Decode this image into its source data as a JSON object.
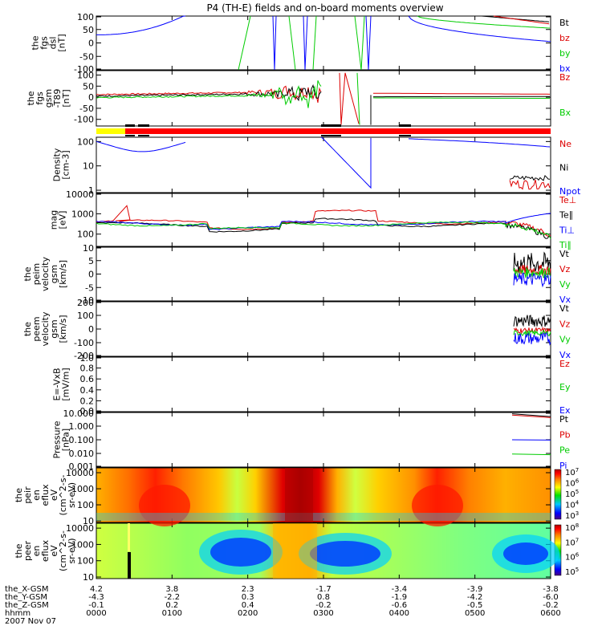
{
  "title": "P4 (TH-E) fields and on-board moments overview",
  "date_label": "2007 Nov 07",
  "orbit_rows": [
    {
      "label": "the_X-GSM",
      "values": [
        "4.2",
        "3.8",
        "2.3",
        "-1.7",
        "-3.4",
        "-3.9",
        "-3.8"
      ]
    },
    {
      "label": "the_Y-GSM",
      "values": [
        "-4.3",
        "-2.2",
        "0.3",
        "0.8",
        "-1.9",
        "-4.2",
        "-6.0"
      ]
    },
    {
      "label": "the_Z-GSM",
      "values": [
        "-0.1",
        "0.2",
        "0.4",
        "-0.2",
        "-0.6",
        "-0.5",
        "-0.2"
      ]
    },
    {
      "label": "hhmm",
      "values": [
        "0000",
        "0100",
        "0200",
        "0300",
        "0400",
        "0500",
        "0600"
      ]
    }
  ],
  "colors": {
    "black": "#000000",
    "red": "#dd0000",
    "green": "#00cc00",
    "blue": "#0000ff",
    "yellow": "#ffff00",
    "brightred": "#ff0000"
  },
  "chart_data": [
    {
      "type": "line",
      "panel": "fgs_dsl",
      "ylabel": [
        "the",
        "fgs",
        "dsl",
        "[nT]"
      ],
      "ylim": [
        -100,
        100
      ],
      "yticks": [
        "100",
        "50",
        "0",
        "-50",
        "-100"
      ],
      "series": [
        {
          "name": "Bt",
          "color": "#000000"
        },
        {
          "name": "bz",
          "color": "#dd0000"
        },
        {
          "name": "by",
          "color": "#00cc00"
        },
        {
          "name": "bx",
          "color": "#0000ff"
        }
      ]
    },
    {
      "type": "line",
      "panel": "fgs_gsm",
      "ylabel": [
        "the",
        "fgs",
        "gsm",
        "-T89",
        "[nT]"
      ],
      "ylim": [
        -130,
        120
      ],
      "yticks": [
        "100",
        "50",
        "0",
        "-50",
        "-100"
      ],
      "series": [
        {
          "name": "Bz",
          "color": "#dd0000"
        },
        {
          "name": "Bx",
          "color": "#00cc00"
        }
      ]
    },
    {
      "type": "line",
      "panel": "density",
      "ylabel": [
        "Density",
        "[cm-3]"
      ],
      "scale": "log",
      "ylim": [
        0.8,
        150
      ],
      "yticks": [
        "100",
        "10",
        "1"
      ],
      "series": [
        {
          "name": "Ne",
          "color": "#dd0000"
        },
        {
          "name": "Ni",
          "color": "#000000"
        },
        {
          "name": "Npot",
          "color": "#0000ff"
        }
      ]
    },
    {
      "type": "line",
      "panel": "temperature",
      "ylabel": [
        "mag",
        "[eV]"
      ],
      "scale": "log",
      "ylim": [
        25,
        10000
      ],
      "yticks": [
        "10000",
        "1000",
        "100"
      ],
      "series": [
        {
          "name": "Te⊥",
          "color": "#dd0000"
        },
        {
          "name": "Te∥",
          "color": "#000000"
        },
        {
          "name": "Ti⊥",
          "color": "#0000ff"
        },
        {
          "name": "Ti∥",
          "color": "#00cc00"
        }
      ]
    },
    {
      "type": "line",
      "panel": "peim_velocity",
      "ylabel": [
        "the",
        "peim",
        "velocity",
        "gsm",
        "[km/s]"
      ],
      "ylim": [
        -10,
        10
      ],
      "yticks": [
        "10",
        "5",
        "0",
        "-5",
        "-10"
      ],
      "series": [
        {
          "name": "Vt",
          "color": "#000000"
        },
        {
          "name": "Vz",
          "color": "#dd0000"
        },
        {
          "name": "Vy",
          "color": "#00cc00"
        },
        {
          "name": "Vx",
          "color": "#0000ff"
        }
      ]
    },
    {
      "type": "line",
      "panel": "peem_velocity",
      "ylabel": [
        "the",
        "peem",
        "velocity",
        "gsm",
        "[km/s]"
      ],
      "ylim": [
        -200,
        200
      ],
      "yticks": [
        "200",
        "100",
        "0",
        "-100",
        "-200"
      ],
      "series": [
        {
          "name": "Vt",
          "color": "#000000"
        },
        {
          "name": "Vz",
          "color": "#dd0000"
        },
        {
          "name": "Vy",
          "color": "#00cc00"
        },
        {
          "name": "Vx",
          "color": "#0000ff"
        }
      ]
    },
    {
      "type": "line",
      "panel": "efield",
      "ylabel": [
        "E=-VxB",
        "[mV/m]"
      ],
      "ylim": [
        0,
        1
      ],
      "yticks": [
        "1.0",
        "0.8",
        "0.6",
        "0.4",
        "0.2",
        "0.0"
      ],
      "series": [
        {
          "name": "Ez",
          "color": "#dd0000"
        },
        {
          "name": "Ey",
          "color": "#00cc00"
        },
        {
          "name": "Ex",
          "color": "#0000ff"
        }
      ]
    },
    {
      "type": "line",
      "panel": "pressure",
      "ylabel": [
        "Pressure",
        "[nPa]"
      ],
      "scale": "log",
      "ylim": [
        0.001,
        10
      ],
      "yticks": [
        "10.000",
        "1.000",
        "0.100",
        "0.010",
        "0.001"
      ],
      "series": [
        {
          "name": "Pt",
          "color": "#000000"
        },
        {
          "name": "Pb",
          "color": "#dd0000"
        },
        {
          "name": "Pe",
          "color": "#00cc00"
        },
        {
          "name": "Pi",
          "color": "#0000ff"
        }
      ]
    },
    {
      "type": "heatmap",
      "panel": "peir_spectrogram",
      "ylabel": [
        "the",
        "peir",
        "en",
        "eflux",
        "eV",
        "(cm^2-s-",
        "sr-eV)"
      ],
      "scale": "log",
      "ylim": [
        8,
        20000
      ],
      "yticks": [
        "10000",
        "1000",
        "100",
        "10"
      ],
      "colorbar": {
        "ticks": [
          "10^7",
          "10^6",
          "10^5",
          "10^4",
          "10^3"
        ]
      }
    },
    {
      "type": "heatmap",
      "panel": "peer_spectrogram",
      "ylabel": [
        "the",
        "peer",
        "en",
        "eflux",
        "eV",
        "(cm^2-s-",
        "sr-eV)"
      ],
      "scale": "log",
      "ylim": [
        8,
        20000
      ],
      "yticks": [
        "10000",
        "1000",
        "100",
        "10"
      ],
      "colorbar": {
        "ticks": [
          "10^8",
          "10^7",
          "10^6",
          "10^5"
        ]
      }
    }
  ]
}
